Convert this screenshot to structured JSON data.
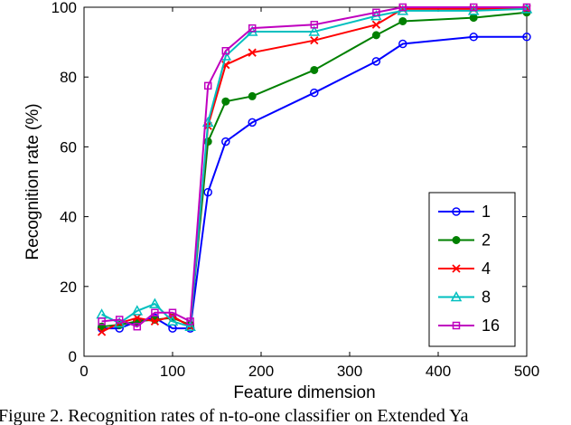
{
  "chart_data": {
    "type": "line",
    "title": "",
    "xlabel": "Feature dimension",
    "ylabel": "Recognition rate (%)",
    "xlim": [
      0,
      500
    ],
    "ylim": [
      0,
      100
    ],
    "xticks": [
      0,
      100,
      200,
      300,
      400,
      500
    ],
    "yticks": [
      0,
      20,
      40,
      60,
      80,
      100
    ],
    "grid": false,
    "legend_position": "bottom-right",
    "x": [
      20,
      40,
      60,
      80,
      100,
      120,
      140,
      160,
      190,
      260,
      330,
      360,
      440,
      500
    ],
    "series": [
      {
        "name": "1",
        "color": "#0000ff",
        "marker": "circle",
        "values": [
          8,
          8,
          10,
          11,
          8,
          8,
          47,
          61.5,
          67,
          75.5,
          84.5,
          89.5,
          91.5,
          91.5
        ]
      },
      {
        "name": "2",
        "color": "#008000",
        "marker": "filled-circle",
        "values": [
          8.5,
          9,
          10,
          10.5,
          11,
          9,
          61.5,
          73,
          74.5,
          82,
          92,
          96,
          97,
          98.5
        ]
      },
      {
        "name": "4",
        "color": "#ff0000",
        "marker": "x",
        "values": [
          7,
          9.5,
          11,
          10,
          11.5,
          8.5,
          66,
          83.5,
          87,
          90.5,
          95,
          99.5,
          99.5,
          99.5
        ]
      },
      {
        "name": "8",
        "color": "#00bfbf",
        "marker": "triangle",
        "values": [
          12,
          9.5,
          13,
          15,
          10,
          8.5,
          67,
          86,
          93,
          93,
          97.5,
          99,
          99,
          99.5
        ]
      },
      {
        "name": "16",
        "color": "#bf00bf",
        "marker": "square",
        "values": [
          10,
          10.5,
          8.5,
          12.5,
          12.5,
          10,
          77.5,
          87.5,
          94,
          95,
          98.5,
          100,
          100,
          100
        ]
      }
    ]
  },
  "caption": "Figure 2. Recognition rates of n-to-one classifier on Extended Ya"
}
